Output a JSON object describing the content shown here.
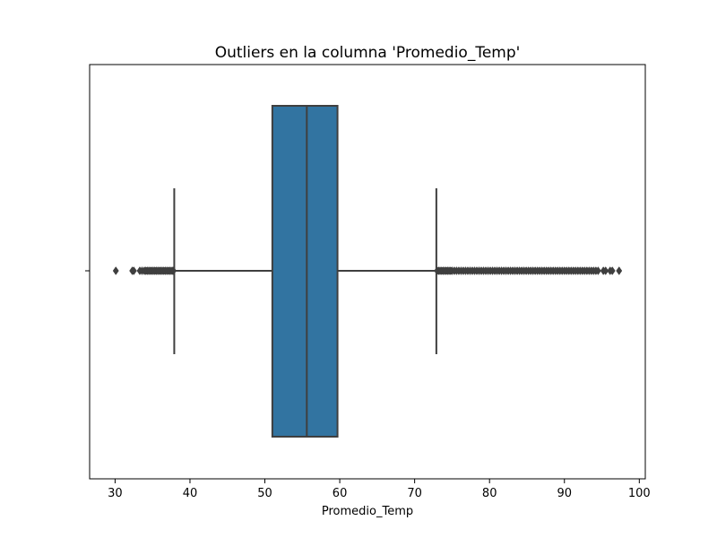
{
  "chart_data": {
    "type": "boxplot",
    "title": "Outliers en la columna 'Promedio_Temp'",
    "xlabel": "Promedio_Temp",
    "ylabel": "",
    "xlim": [
      26.6,
      100.8
    ],
    "xticks": [
      30,
      40,
      50,
      60,
      70,
      80,
      90,
      100
    ],
    "orientation": "horizontal",
    "grid": false,
    "box": {
      "whisker_low": 37.9,
      "q1": 51.0,
      "median": 55.6,
      "q3": 59.7,
      "whisker_high": 72.9,
      "fill_color": "#3274a1",
      "line_color": "#3f3f3f"
    },
    "outliers_low": [
      30.1,
      32.3,
      32.5,
      33.3,
      33.6,
      33.9,
      34.1,
      34.3,
      34.5,
      34.7,
      34.9,
      35.1,
      35.3,
      35.5,
      35.7,
      35.9,
      36.1,
      36.3,
      36.5,
      36.7,
      36.9,
      37.1,
      37.3,
      37.5,
      37.7,
      37.8
    ],
    "outliers_high": [
      73.0,
      73.2,
      73.4,
      73.6,
      73.8,
      74.0,
      74.2,
      74.4,
      74.6,
      74.8,
      75.0,
      75.3,
      75.6,
      75.9,
      76.2,
      76.5,
      76.8,
      77.1,
      77.4,
      77.7,
      78.0,
      78.3,
      78.6,
      78.9,
      79.2,
      79.5,
      79.8,
      80.1,
      80.4,
      80.7,
      81.0,
      81.3,
      81.6,
      81.9,
      82.2,
      82.5,
      82.8,
      83.1,
      83.4,
      83.7,
      84.0,
      84.3,
      84.6,
      84.9,
      85.2,
      85.5,
      85.8,
      86.1,
      86.4,
      86.7,
      87.0,
      87.3,
      87.6,
      87.9,
      88.2,
      88.5,
      88.8,
      89.1,
      89.4,
      89.7,
      90.0,
      90.3,
      90.6,
      90.9,
      91.2,
      91.5,
      91.8,
      92.1,
      92.4,
      92.7,
      93.0,
      93.3,
      93.6,
      93.9,
      94.2,
      94.5,
      95.2,
      95.5,
      96.1,
      96.4,
      97.3
    ]
  }
}
